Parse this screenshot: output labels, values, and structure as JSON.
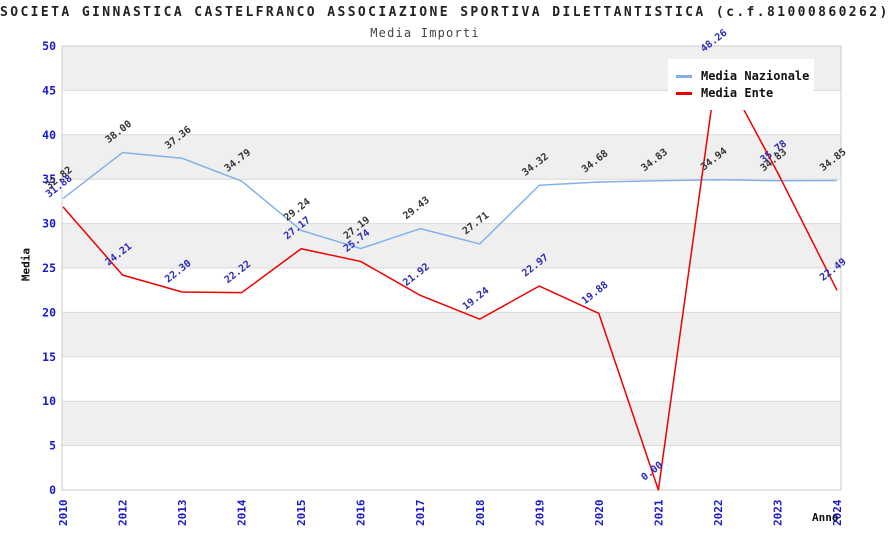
{
  "header": {
    "title": "SOCIETA GINNASTICA CASTELFRANCO ASSOCIAZIONE SPORTIVA DILETTANTISTICA (c.f.81000860262)",
    "subtitle": "Media Importi"
  },
  "legend": {
    "items": [
      {
        "label": "Media Nazionale",
        "color": "#82b1e8"
      },
      {
        "label": "Media Ente",
        "color": "#ee0000"
      }
    ]
  },
  "axes": {
    "ylabel": "Media",
    "xlabel": "Anno"
  },
  "chart_data": {
    "type": "line",
    "title": "Media Importi",
    "categories": [
      "2010",
      "2012",
      "2013",
      "2014",
      "2015",
      "2016",
      "2017",
      "2018",
      "2019",
      "2020",
      "2021",
      "2022",
      "2023",
      "2024"
    ],
    "series": [
      {
        "name": "Media Nazionale",
        "color": "#82b1e8",
        "label_color": "#333333",
        "values": [
          32.82,
          38.0,
          37.36,
          34.79,
          29.24,
          27.19,
          29.43,
          27.71,
          34.32,
          34.68,
          34.83,
          34.94,
          34.83,
          34.85
        ]
      },
      {
        "name": "Media Ente",
        "color": "#ee0000",
        "label_color": "#2a2ab8",
        "values": [
          31.88,
          24.21,
          22.3,
          22.22,
          27.17,
          25.74,
          21.92,
          19.24,
          22.97,
          19.88,
          0.0,
          48.26,
          35.78,
          22.49
        ]
      }
    ],
    "xlabel": "Anno",
    "ylabel": "Media",
    "ylim": [
      0,
      50
    ],
    "yticks": [
      0,
      5,
      10,
      15,
      20,
      25,
      30,
      35,
      40,
      45,
      50
    ],
    "grid": true,
    "legend_position": "top-right",
    "band_colors": [
      "#efefef",
      "#ffffff"
    ],
    "tick_color": "#1818cf",
    "gridline_color": "#d9d9d9",
    "plot_border_color": "#cccccc"
  }
}
